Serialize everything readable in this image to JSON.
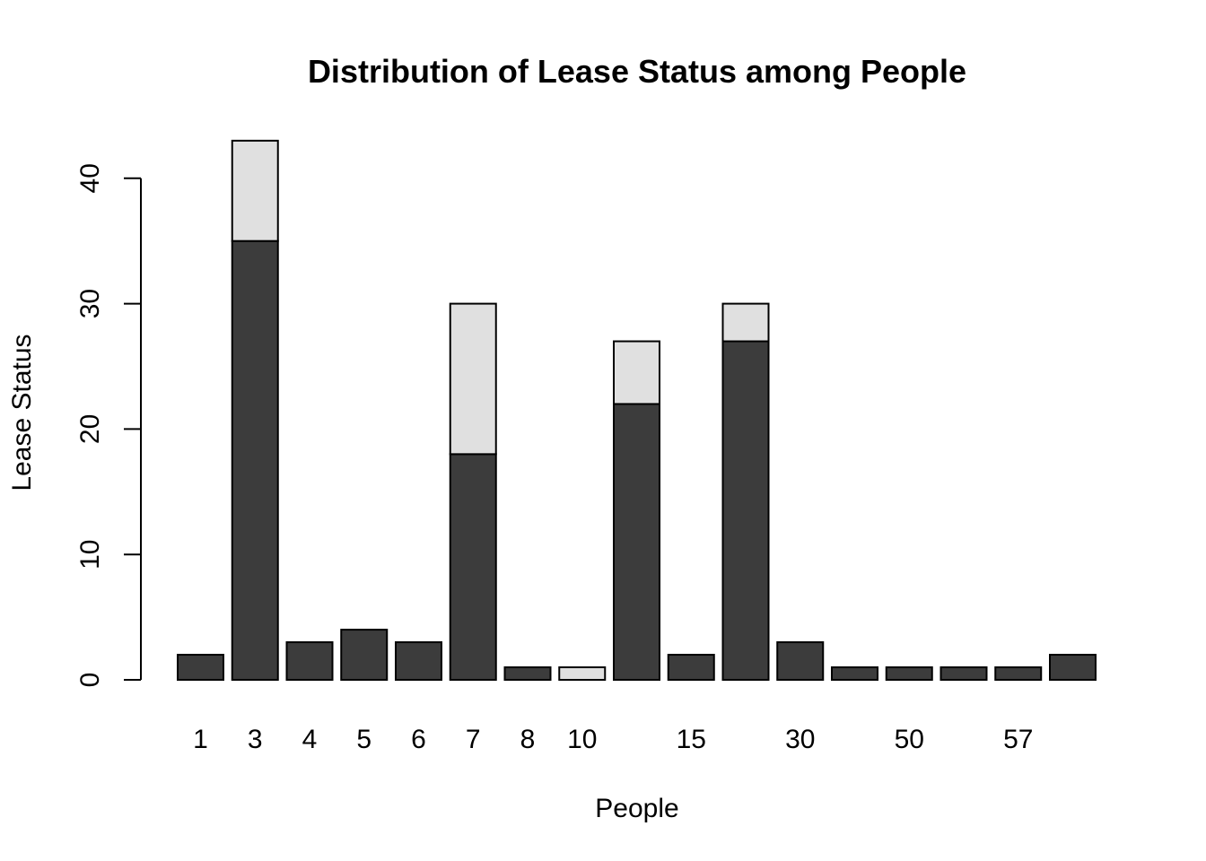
{
  "chart_data": {
    "type": "bar",
    "stacked": true,
    "title": "Distribution of Lease Status among People",
    "xlabel": "People",
    "ylabel": "Lease Status",
    "ylim": [
      0,
      43
    ],
    "yticks": [
      0,
      10,
      20,
      30,
      40
    ],
    "grid": false,
    "legend": "none",
    "bar_count": 17,
    "category_labels": [
      {
        "bar": 1,
        "label": "1"
      },
      {
        "bar": 2,
        "label": "3"
      },
      {
        "bar": 3,
        "label": "4"
      },
      {
        "bar": 4,
        "label": "5"
      },
      {
        "bar": 5,
        "label": "6"
      },
      {
        "bar": 6,
        "label": "7"
      },
      {
        "bar": 7,
        "label": "8"
      },
      {
        "bar": 8,
        "label": "10"
      },
      {
        "bar": 10,
        "label": "15"
      },
      {
        "bar": 12,
        "label": "30"
      },
      {
        "bar": 14,
        "label": "50"
      },
      {
        "bar": 16,
        "label": "57"
      }
    ],
    "series": [
      {
        "color": "#3c3c3c",
        "values": [
          2,
          35,
          3,
          4,
          3,
          18,
          1,
          0,
          22,
          2,
          27,
          3,
          1,
          1,
          1,
          1,
          2
        ]
      },
      {
        "color": "#e0e0e0",
        "values": [
          0,
          8,
          0,
          0,
          0,
          12,
          0,
          1,
          5,
          0,
          3,
          0,
          0,
          0,
          0,
          0,
          0
        ]
      }
    ]
  }
}
